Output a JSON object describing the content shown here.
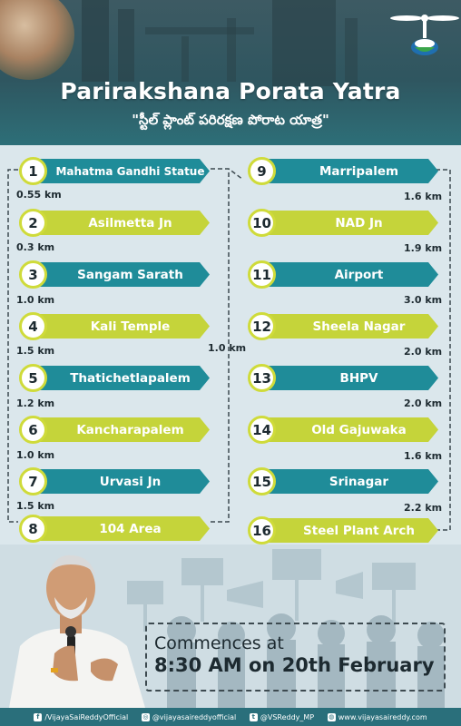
{
  "header": {
    "title": "Parirakshana Porata Yatra",
    "subtitle": "\"స్టీల్ ప్లాంట్ పరిరక్షణ పోరాట యాత్ర\""
  },
  "colors": {
    "teal": "#1f8c99",
    "lime": "#c5d43a",
    "dark": "#2f5660"
  },
  "left_stops": [
    {
      "num": "1",
      "name": "Mahatma Gandhi Statue",
      "color": "teal"
    },
    {
      "num": "2",
      "name": "Asilmetta Jn",
      "color": "lime"
    },
    {
      "num": "3",
      "name": "Sangam Sarath",
      "color": "teal"
    },
    {
      "num": "4",
      "name": "Kali Temple",
      "color": "lime"
    },
    {
      "num": "5",
      "name": "Thatichetlapalem",
      "color": "teal"
    },
    {
      "num": "6",
      "name": "Kancharapalem",
      "color": "lime"
    },
    {
      "num": "7",
      "name": "Urvasi Jn",
      "color": "teal"
    },
    {
      "num": "8",
      "name": "104 Area",
      "color": "lime"
    }
  ],
  "right_stops": [
    {
      "num": "9",
      "name": "Marripalem",
      "color": "teal"
    },
    {
      "num": "10",
      "name": "NAD Jn",
      "color": "lime"
    },
    {
      "num": "11",
      "name": "Airport",
      "color": "teal"
    },
    {
      "num": "12",
      "name": "Sheela Nagar",
      "color": "lime"
    },
    {
      "num": "13",
      "name": "BHPV",
      "color": "teal"
    },
    {
      "num": "14",
      "name": "Old Gajuwaka",
      "color": "lime"
    },
    {
      "num": "15",
      "name": "Srinagar",
      "color": "teal"
    },
    {
      "num": "16",
      "name": "Steel Plant Arch",
      "color": "lime"
    }
  ],
  "left_distances": [
    "0.55 km",
    "0.3 km",
    "1.0 km",
    "1.5 km",
    "1.2 km",
    "1.0 km",
    "1.5 km"
  ],
  "right_distances": [
    "1.6 km",
    "1.9 km",
    "3.0 km",
    "2.0 km",
    "2.0 km",
    "1.6 km",
    "2.2 km"
  ],
  "middle_distance": "1.0 km",
  "commence": {
    "line1": "Commences at",
    "line2": "8:30 AM on 20th February"
  },
  "footer": {
    "facebook": "/VijayaSaiReddyOfficial",
    "instagram": "@vijayasaireddyofficial",
    "twitter": "@VSReddy_MP",
    "website": "www.vijayasaireddy.com"
  }
}
